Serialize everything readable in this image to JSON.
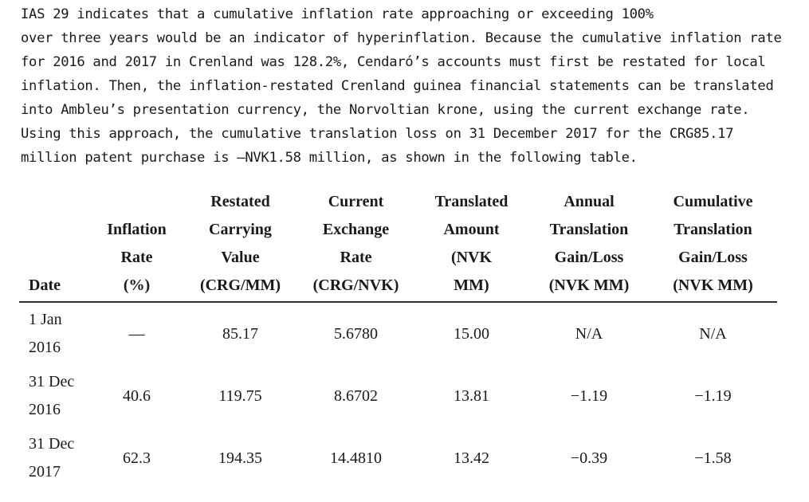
{
  "paragraph": {
    "lines": [
      "IAS 29 indicates that a cumulative inflation rate approaching or exceeding 100%",
      "over three years would be an indicator of hyperinflation. Because the cumulative inflation rate",
      "for 2016 and 2017 in Crenland was 128.2%, Cendaró’s accounts must first be restated for local",
      "inflation. Then, the inflation-restated Crenland guinea financial statements can be translated",
      "into Ambleu’s presentation currency, the Norvoltian krone, using the current exchange rate.",
      "Using this approach, the cumulative translation loss on 31 December 2017 for the CRG85.17",
      "million patent purchase is –NVK1.58 million, as shown in the following table."
    ]
  },
  "table": {
    "headers": [
      [
        "Date"
      ],
      [
        "Inflation",
        "Rate",
        "(%)"
      ],
      [
        "Restated",
        "Carrying",
        "Value",
        "(CRG/MM)"
      ],
      [
        "Current",
        "Exchange",
        "Rate",
        "(CRG/NVK)"
      ],
      [
        "Translated",
        "Amount",
        "(NVK",
        "MM)"
      ],
      [
        "Annual",
        "Translation",
        "Gain/Loss",
        "(NVK MM)"
      ],
      [
        "Cumulative",
        "Translation",
        "Gain/Loss",
        "(NVK MM)"
      ]
    ],
    "rows": [
      {
        "date": [
          "1 Jan",
          "2016"
        ],
        "inflation": "—",
        "restated": "85.17",
        "exchange": "5.6780",
        "translated": "15.00",
        "annual": "N/A",
        "cumulative": "N/A"
      },
      {
        "date": [
          "31 Dec",
          "2016"
        ],
        "inflation": "40.6",
        "restated": "119.75",
        "exchange": "8.6702",
        "translated": "13.81",
        "annual": "−1.19",
        "cumulative": "−1.19"
      },
      {
        "date": [
          "31 Dec",
          "2017"
        ],
        "inflation": "62.3",
        "restated": "194.35",
        "exchange": "14.4810",
        "translated": "13.42",
        "annual": "−0.39",
        "cumulative": "−1.58"
      }
    ]
  }
}
